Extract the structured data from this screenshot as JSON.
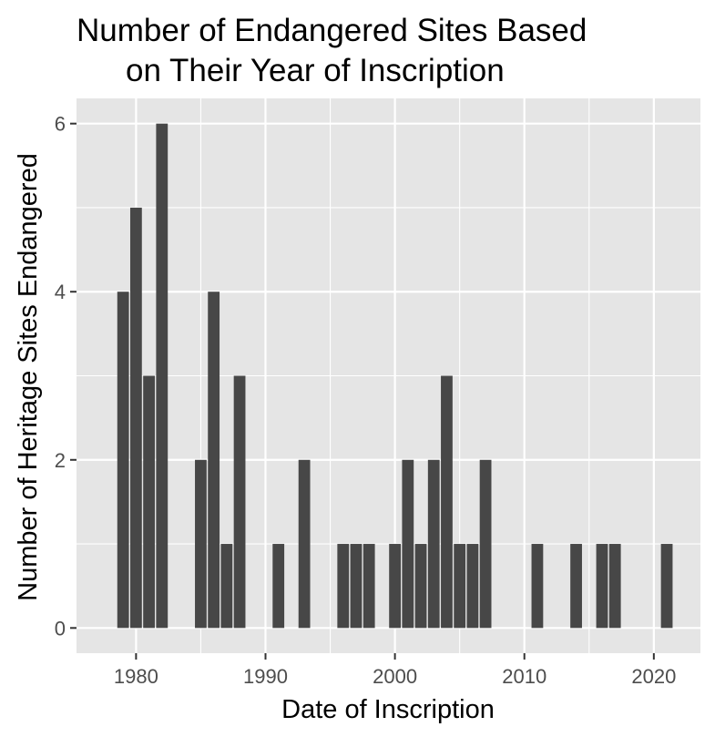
{
  "chart_data": {
    "type": "bar",
    "title_lines": [
      "Number of Endangered Sites Based",
      "on Their Year of Inscription"
    ],
    "xlabel": "Date of Inscription",
    "ylabel": "Number of Heritage Sites Endangered",
    "x": [
      1979,
      1980,
      1981,
      1982,
      1985,
      1986,
      1987,
      1988,
      1991,
      1993,
      1996,
      1997,
      1998,
      2000,
      2001,
      2002,
      2003,
      2004,
      2005,
      2006,
      2007,
      2011,
      2014,
      2016,
      2017,
      2021
    ],
    "values": [
      4,
      5,
      3,
      6,
      2,
      4,
      1,
      3,
      1,
      2,
      1,
      1,
      1,
      1,
      2,
      1,
      2,
      3,
      1,
      1,
      2,
      1,
      1,
      1,
      1,
      1
    ],
    "xlim": [
      1975.4,
      2023.6
    ],
    "ylim": [
      -0.3,
      6.3
    ],
    "xticks": [
      1980,
      1990,
      2000,
      2010,
      2020
    ],
    "yticks": [
      0,
      2,
      4,
      6
    ],
    "grid": true,
    "bar_color": "#474747",
    "panel_color": "#e5e5e5",
    "grid_color": "#ffffff"
  }
}
